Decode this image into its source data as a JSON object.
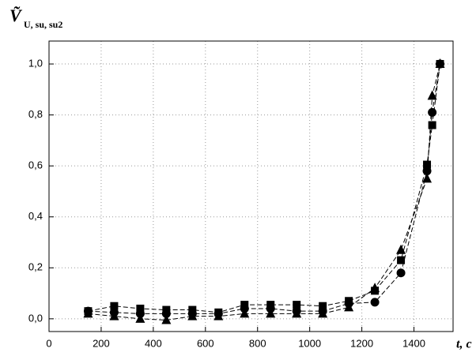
{
  "chart_data": {
    "type": "line",
    "y_label": "Ṽ",
    "y_label_sub": "U, su, su2",
    "x_label": "t, c",
    "x": [
      150,
      250,
      350,
      450,
      550,
      650,
      750,
      850,
      950,
      1050,
      1150,
      1250,
      1350,
      1450,
      1470,
      1500
    ],
    "series": [
      {
        "color": "#000000",
        "marker": "square",
        "values": [
          0.03,
          0.05,
          0.04,
          0.035,
          0.035,
          0.025,
          0.055,
          0.055,
          0.055,
          0.05,
          0.07,
          0.11,
          0.23,
          0.605,
          0.76,
          1.0
        ]
      },
      {
        "color": "#000000",
        "marker": "circle",
        "values": [
          0.03,
          0.025,
          0.02,
          0.02,
          0.02,
          0.02,
          0.04,
          0.04,
          0.03,
          0.03,
          0.06,
          0.065,
          0.18,
          0.58,
          0.81,
          1.0
        ]
      },
      {
        "color": "#000000",
        "marker": "triangle",
        "values": [
          0.02,
          0.01,
          0.0,
          -0.005,
          0.01,
          0.01,
          0.02,
          0.02,
          0.02,
          0.02,
          0.045,
          0.12,
          0.27,
          0.55,
          0.875,
          1.0
        ]
      }
    ],
    "xlim": [
      0,
      1550
    ],
    "xticks": [
      0,
      200,
      400,
      600,
      800,
      1000,
      1200,
      1400
    ],
    "ylim": [
      -0.05,
      1.09
    ],
    "yticks": [
      {
        "value": 0,
        "label": "0,0"
      },
      {
        "value": 0.2,
        "label": "0,2"
      },
      {
        "value": 0.4,
        "label": "0,4"
      },
      {
        "value": 0.6,
        "label": "0,6"
      },
      {
        "value": 0.8,
        "label": "0,8"
      },
      {
        "value": 1.0,
        "label": "1,0"
      }
    ],
    "grid": true
  }
}
